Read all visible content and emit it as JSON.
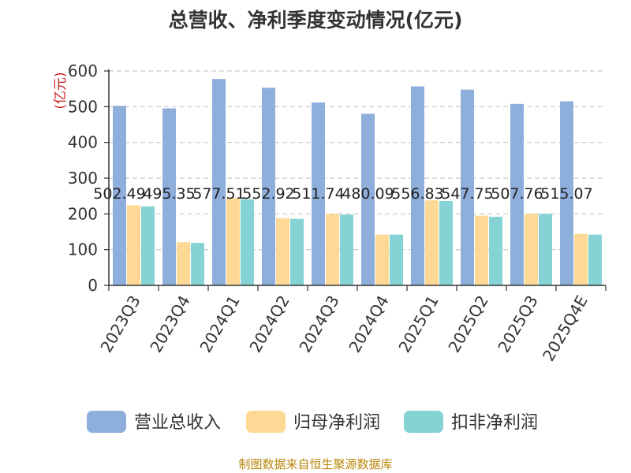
{
  "chart_data": {
    "type": "bar",
    "title": "总营收、净利季度变动情况(亿元)",
    "y_unit": "(亿元)",
    "categories": [
      "2023Q3",
      "2023Q4",
      "2024Q1",
      "2024Q2",
      "2024Q3",
      "2024Q4",
      "2025Q1",
      "2025Q2",
      "2025Q3",
      "2025Q4E"
    ],
    "series": [
      {
        "name": "营业总收入",
        "color": "#8eaedb",
        "values": [
          502.49,
          495.35,
          577.51,
          552.92,
          511.74,
          480.09,
          556.83,
          547.75,
          507.76,
          515.07
        ]
      },
      {
        "name": "归母净利润",
        "color": "#fdd995",
        "values": [
          224,
          121,
          244,
          188,
          200,
          142,
          238,
          195,
          200,
          144
        ]
      },
      {
        "name": "扣非净利润",
        "color": "#85d3d5",
        "values": [
          221,
          119,
          241,
          186,
          198,
          142,
          236,
          192,
          200,
          142
        ]
      }
    ],
    "data_labels": [
      "502.49",
      "495.35",
      "577.51",
      "552.92",
      "511.74",
      "480.09",
      "556.83",
      "547.75",
      "507.76",
      "515.07"
    ],
    "y_ticks": [
      "0",
      "100",
      "200",
      "300",
      "400",
      "500",
      "600"
    ],
    "ylim": [
      0,
      600
    ],
    "grid": "horizontal dashed",
    "legend_position": "bottom"
  },
  "source": "制图数据来自恒生聚源数据库"
}
